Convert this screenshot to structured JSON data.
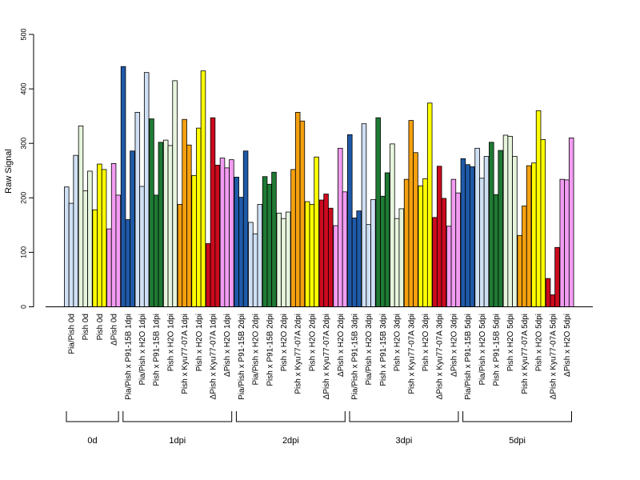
{
  "chart_data": {
    "type": "bar",
    "ylabel": "Raw Signal",
    "ylim": [
      0,
      500
    ],
    "yticks": [
      0,
      100,
      200,
      300,
      400,
      500
    ],
    "grid": false,
    "legend": "none",
    "colors": {
      "Pia/Pish": "#cfe0f5",
      "Pish": "#e6f5dc",
      "Pish yellow": "#ffff00",
      "ΔPish": "#f29cf2",
      "P91-15B": "#1f5aa8",
      "H2O": "#cfe0f5",
      "P91-15B green": "#1f7a34",
      "Kyu77-07A": "#f5a010",
      "ΔPish x Kyu77-07A": "#cc0a1e"
    },
    "categories": [
      {
        "label": "Pia/Pish 0d",
        "color": "#cfe0f5",
        "values": [
          220,
          190,
          278
        ]
      },
      {
        "label": "Pish 0d",
        "color": "#e6f5dc",
        "values": [
          332,
          213,
          249
        ]
      },
      {
        "label": "Pish 0d",
        "color": "#ffff00",
        "values": [
          178,
          262,
          252
        ]
      },
      {
        "label": "ΔPish 0d",
        "color": "#f29cf2",
        "values": [
          143,
          263,
          205
        ]
      },
      {
        "label": "Pia/Pish x P91-15B 1dpi",
        "color": "#1f5aa8",
        "values": [
          441,
          160,
          286
        ]
      },
      {
        "label": "Pia/Pish x H2O 1dpi",
        "color": "#cfe0f5",
        "values": [
          357,
          221,
          430
        ]
      },
      {
        "label": "Pish x P91-15B 1dpi",
        "color": "#1f7a34",
        "values": [
          345,
          205,
          302
        ]
      },
      {
        "label": "Pish x H2O 1dpi",
        "color": "#e6f5dc",
        "values": [
          306,
          296,
          415
        ]
      },
      {
        "label": "Pish x Kyu77-07A 1dpi",
        "color": "#f5a010",
        "values": [
          188,
          344,
          297
        ]
      },
      {
        "label": "Pish x H2O 1dpi",
        "color": "#ffff00",
        "values": [
          241,
          328,
          433
        ]
      },
      {
        "label": "ΔPish x Kyu77-07A 1dpi",
        "color": "#cc0a1e",
        "values": [
          116,
          347,
          260
        ]
      },
      {
        "label": "ΔPish x H2O 1dpi",
        "color": "#f29cf2",
        "values": [
          273,
          255,
          270
        ]
      },
      {
        "label": "Pia/Pish x P91-15B 2dpi",
        "color": "#1f5aa8",
        "values": [
          238,
          201,
          286
        ]
      },
      {
        "label": "Pia/Pish x H2O 2dpi",
        "color": "#cfe0f5",
        "values": [
          155,
          134,
          188
        ]
      },
      {
        "label": "Pish x P91-15B 2dpi",
        "color": "#1f7a34",
        "values": [
          239,
          225,
          247
        ]
      },
      {
        "label": "Pish x H2O 2dpi",
        "color": "#e6f5dc",
        "values": [
          172,
          162,
          174
        ]
      },
      {
        "label": "Pish x Kyu77-07A 2dpi",
        "color": "#f5a010",
        "values": [
          252,
          357,
          341
        ]
      },
      {
        "label": "Pish x H2O 2dpi",
        "color": "#ffff00",
        "values": [
          193,
          188,
          275
        ]
      },
      {
        "label": "ΔPish x Kyu77-07A 2dpi",
        "color": "#cc0a1e",
        "values": [
          196,
          207,
          181
        ]
      },
      {
        "label": "ΔPish x H2O 2dpi",
        "color": "#f29cf2",
        "values": [
          149,
          291,
          211
        ]
      },
      {
        "label": "Pia/Pish x P91-15B 3dpi",
        "color": "#1f5aa8",
        "values": [
          316,
          163,
          176
        ]
      },
      {
        "label": "Pia/Pish x H2O 3dpi",
        "color": "#cfe0f5",
        "values": [
          336,
          151,
          197
        ]
      },
      {
        "label": "Pish x P91-15B 3dpi",
        "color": "#1f7a34",
        "values": [
          347,
          203,
          246
        ]
      },
      {
        "label": "Pish x H2O 3dpi",
        "color": "#e6f5dc",
        "values": [
          299,
          162,
          180
        ]
      },
      {
        "label": "Pish x Kyu77-07A 3dpi",
        "color": "#f5a010",
        "values": [
          234,
          342,
          283
        ]
      },
      {
        "label": "Pish x H2O 3dpi",
        "color": "#ffff00",
        "values": [
          222,
          235,
          374
        ]
      },
      {
        "label": "ΔPish x Kyu77-07A 3dpi",
        "color": "#cc0a1e",
        "values": [
          164,
          258,
          199
        ]
      },
      {
        "label": "ΔPish x H2O 3dpi",
        "color": "#f29cf2",
        "values": [
          148,
          234,
          209
        ]
      },
      {
        "label": "Pia/Pish x P91-15B 5dpi",
        "color": "#1f5aa8",
        "values": [
          272,
          261,
          257
        ]
      },
      {
        "label": "Pia/Pish x H2O 5dpi",
        "color": "#cfe0f5",
        "values": [
          291,
          236,
          276
        ]
      },
      {
        "label": "Pish x P91-15B 5dpi",
        "color": "#1f7a34",
        "values": [
          302,
          206,
          287
        ]
      },
      {
        "label": "Pish x H2O 5dpi",
        "color": "#e6f5dc",
        "values": [
          315,
          313,
          276
        ]
      },
      {
        "label": "Pish x Kyu77-07A 5dpi",
        "color": "#f5a010",
        "values": [
          131,
          185,
          259
        ]
      },
      {
        "label": "Pish x H2O 5dpi",
        "color": "#ffff00",
        "values": [
          264,
          360,
          307
        ]
      },
      {
        "label": "ΔPish x Kyu77-07A 5dpi",
        "color": "#cc0a1e",
        "values": [
          52,
          22,
          109
        ]
      },
      {
        "label": "ΔPish x H2O 5dpi",
        "color": "#f29cf2",
        "values": [
          234,
          233,
          310
        ]
      }
    ],
    "groups": [
      {
        "label": "0d",
        "from": 0,
        "to": 3
      },
      {
        "label": "1dpi",
        "from": 4,
        "to": 11
      },
      {
        "label": "2dpi",
        "from": 12,
        "to": 19
      },
      {
        "label": "3dpi",
        "from": 20,
        "to": 27
      },
      {
        "label": "5dpi",
        "from": 28,
        "to": 35
      }
    ]
  }
}
